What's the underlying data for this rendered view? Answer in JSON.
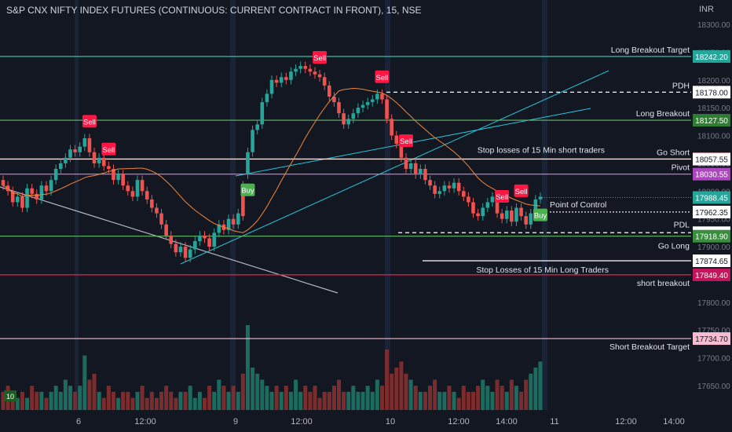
{
  "header": {
    "title": "S&P CNX NIFTY INDEX FUTURES (CONTINUOUS: CURRENT CONTRACT IN FRONT), 15, NSE"
  },
  "currency": "INR",
  "colors": {
    "bg": "#131722",
    "grid": "#1e222d",
    "up": "#26a69a",
    "down": "#ef5350",
    "volUp": "#1b6b5f",
    "volDown": "#7b2d2e",
    "ma": "#f2873a",
    "text": "#d1d4dc"
  },
  "price_scale": {
    "ticks": [
      "18300.00",
      "18250.00",
      "18200.00",
      "18150.00",
      "18100.00",
      "18050.00",
      "18000.00",
      "17950.00",
      "17900.00",
      "17850.00",
      "17800.00",
      "17750.00",
      "17700.00",
      "17650.00"
    ]
  },
  "time_axis": {
    "labels": [
      "6",
      "12:00",
      "9",
      "12:00",
      "10",
      "12:00",
      "14:00",
      "11",
      "12:00",
      "14:00"
    ]
  },
  "levels": [
    {
      "name": "long-breakout-target",
      "label": "Long Breakout Target",
      "price_label": "18242.20",
      "price": 18242.2,
      "color": "#26c6a6",
      "style": "solid"
    },
    {
      "name": "pdh",
      "label": "PDH",
      "price_label": "18178.00",
      "price": 18178.0,
      "color": "#ffffff",
      "style": "dashed"
    },
    {
      "name": "long-breakout",
      "label": "Long Breakout",
      "price_label": "18127.50",
      "price": 18127.5,
      "color": "#66bb6a",
      "style": "solid"
    },
    {
      "name": "go-short",
      "label": "Go Short",
      "price_label": "18058.00",
      "price": 18058.0,
      "color": "#ef5350",
      "style": "solid"
    },
    {
      "name": "stop-short",
      "label": "Stop losses of 15 Min short traders",
      "price_label": "18057.55",
      "price": 18057.55,
      "color": "#ffffff",
      "style": "solid"
    },
    {
      "name": "pivot",
      "label": "Pivot",
      "price_label": "18030.55",
      "price": 18030.55,
      "color": "#e07be0",
      "style": "solid"
    },
    {
      "name": "poc",
      "label": "Point of Control",
      "price_label": "17962.35",
      "price": 17962.35,
      "color": "#ffffff",
      "style": "dotted"
    },
    {
      "name": "pdl",
      "label": "PDL",
      "price_label": "17925.15",
      "price": 17925.15,
      "color": "#ffffff",
      "style": "dashed"
    },
    {
      "name": "go-long",
      "label": "Go Long",
      "price_label": "17918.90",
      "price": 17918.9,
      "color": "#66bb6a",
      "style": "solid"
    },
    {
      "name": "stop-long",
      "label": "Stop Losses of 15 Min Long Traders",
      "price_label": "17874.65",
      "price": 17874.65,
      "color": "#ffffff",
      "style": "solid"
    },
    {
      "name": "short-breakout",
      "label": "short breakout",
      "price_label": "17849.40",
      "price": 17849.4,
      "color": "#ef1f4a",
      "style": "solid"
    },
    {
      "name": "short-breakout-target",
      "label": "Short  Breakout Target",
      "price_label": "17734.70",
      "price": 17734.7,
      "color": "#f8bbd0",
      "style": "solid"
    }
  ],
  "last_price": {
    "label": "17988.45",
    "price": 17988.45
  },
  "signals": [
    {
      "text": "Sell",
      "index": 18,
      "type": "sell"
    },
    {
      "text": "Sell",
      "index": 22,
      "type": "sell"
    },
    {
      "text": "Buy",
      "index": 51,
      "type": "buy"
    },
    {
      "text": "Sell",
      "index": 66,
      "type": "sell"
    },
    {
      "text": "Sell",
      "index": 79,
      "type": "sell"
    },
    {
      "text": "Sell",
      "index": 84,
      "type": "sell"
    },
    {
      "text": "Sell",
      "index": 104,
      "type": "sell"
    },
    {
      "text": "Sell",
      "index": 108,
      "type": "sell"
    },
    {
      "text": "Buy",
      "index": 112,
      "type": "buy"
    }
  ],
  "volume_badge": "10",
  "chart_data": {
    "type": "candlestick",
    "closes": [
      18010,
      18000,
      17980,
      17990,
      17970,
      18005,
      17995,
      17985,
      18010,
      18000,
      18020,
      18040,
      18050,
      18060,
      18075,
      18070,
      18080,
      18095,
      18070,
      18050,
      18060,
      18045,
      18040,
      18020,
      18030,
      18010,
      18000,
      17990,
      18020,
      18000,
      17985,
      17970,
      17960,
      17940,
      17920,
      17905,
      17890,
      17900,
      17880,
      17895,
      17910,
      17920,
      17915,
      17900,
      17925,
      17940,
      17930,
      17950,
      17940,
      17960,
      17955,
      18070,
      18110,
      18120,
      18160,
      18175,
      18200,
      18195,
      18205,
      18200,
      18215,
      18220,
      18225,
      18220,
      18215,
      18210,
      18205,
      18190,
      18170,
      18160,
      18140,
      18120,
      18130,
      18140,
      18150,
      18155,
      18160,
      18165,
      18175,
      18165,
      18130,
      18100,
      18085,
      18060,
      18040,
      18050,
      18030,
      18040,
      18020,
      18010,
      17995,
      18000,
      18010,
      18005,
      18015,
      18000,
      17990,
      17980,
      17960,
      17955,
      17970,
      17980,
      17990,
      17960,
      17950,
      17965,
      17945,
      17970,
      17955,
      17940,
      17960,
      17985,
      17990
    ],
    "opens": [
      18020,
      18010,
      18000,
      17980,
      17990,
      17970,
      18005,
      17995,
      17985,
      18010,
      18000,
      18020,
      18040,
      18050,
      18060,
      18075,
      18070,
      18080,
      18095,
      18070,
      18050,
      18060,
      18045,
      18040,
      18020,
      18030,
      18010,
      18000,
      17990,
      18020,
      18000,
      17985,
      17970,
      17960,
      17940,
      17920,
      17905,
      17890,
      17900,
      17880,
      17895,
      17910,
      17920,
      17915,
      17900,
      17925,
      17940,
      17930,
      17950,
      17940,
      18010,
      18030,
      18070,
      18110,
      18120,
      18160,
      18175,
      18200,
      18195,
      18205,
      18200,
      18215,
      18220,
      18225,
      18220,
      18215,
      18210,
      18205,
      18190,
      18170,
      18160,
      18140,
      18120,
      18130,
      18140,
      18150,
      18155,
      18160,
      18165,
      18175,
      18165,
      18130,
      18100,
      18085,
      18060,
      18040,
      18050,
      18030,
      18040,
      18020,
      18010,
      17995,
      18000,
      18010,
      18005,
      18015,
      18000,
      17990,
      17980,
      17960,
      17955,
      17970,
      17980,
      17990,
      17960,
      17950,
      17965,
      17945,
      17970,
      17955,
      17940,
      17960,
      17985
    ],
    "volumes": [
      3,
      4,
      3,
      2,
      3,
      2,
      4,
      3,
      3,
      2,
      3,
      4,
      3,
      5,
      4,
      3,
      4,
      9,
      5,
      6,
      3,
      2,
      4,
      3,
      2,
      3,
      3,
      2,
      3,
      4,
      2,
      3,
      2,
      3,
      4,
      3,
      2,
      3,
      3,
      4,
      2,
      3,
      2,
      4,
      3,
      5,
      4,
      3,
      4,
      3,
      6,
      14,
      7,
      6,
      5,
      4,
      3,
      4,
      3,
      4,
      3,
      5,
      3,
      4,
      3,
      4,
      2,
      3,
      3,
      4,
      5,
      3,
      3,
      4,
      3,
      3,
      4,
      3,
      5,
      4,
      10,
      6,
      7,
      8,
      6,
      5,
      4,
      3,
      3,
      4,
      5,
      3,
      3,
      4,
      3,
      2,
      4,
      3,
      3,
      4,
      5,
      4,
      3,
      5,
      4,
      3,
      5,
      4,
      3,
      5,
      6,
      7,
      8
    ],
    "moving_average": "orange series line",
    "ylim": [
      17620,
      18320
    ]
  }
}
